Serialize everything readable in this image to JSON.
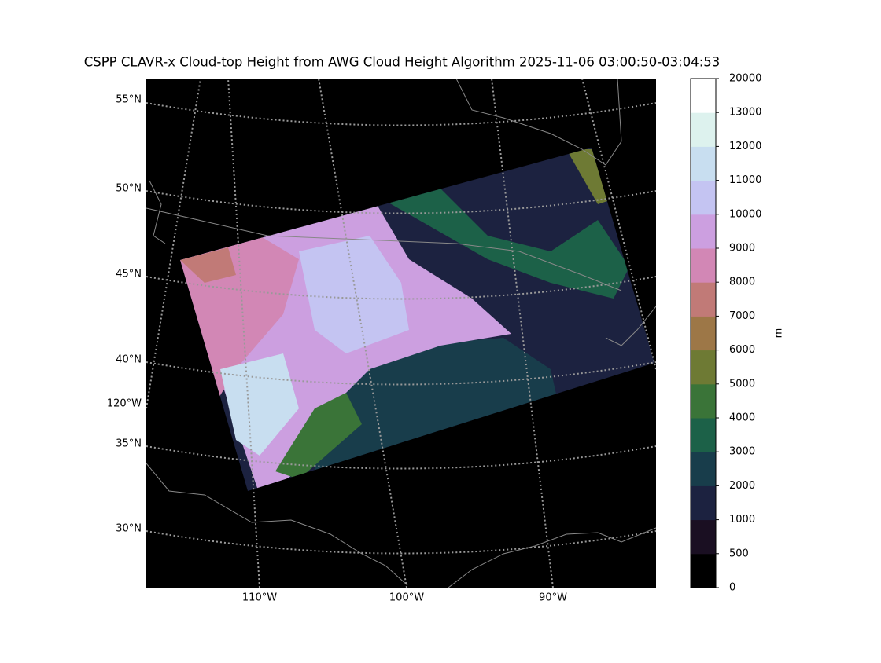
{
  "map": {
    "title": "CSPP CLAVR-x Cloud-top Height from AWG Cloud Height Algorithm 2025-11-06 03:00:50-03:04:53",
    "lat_labels": [
      "55°N",
      "50°N",
      "45°N",
      "40°N",
      "35°N",
      "30°N"
    ],
    "lon_labels": [
      "110°W",
      "100°W",
      "90°W"
    ],
    "lon_label_left": "120°W"
  },
  "colorbar": {
    "label": "m",
    "ticks": [
      0,
      500,
      1000,
      2000,
      3000,
      4000,
      5000,
      6000,
      7000,
      8000,
      9000,
      10000,
      11000,
      12000,
      13000,
      20000
    ],
    "colors": [
      "#000000",
      "#1a0f22",
      "#1c2240",
      "#183d4b",
      "#1c6148",
      "#3a7438",
      "#6e7a34",
      "#9d7747",
      "#c17a77",
      "#d287b5",
      "#cc9fe0",
      "#c4c4f2",
      "#c8def0",
      "#ddf2ee",
      "#ffffff"
    ]
  }
}
